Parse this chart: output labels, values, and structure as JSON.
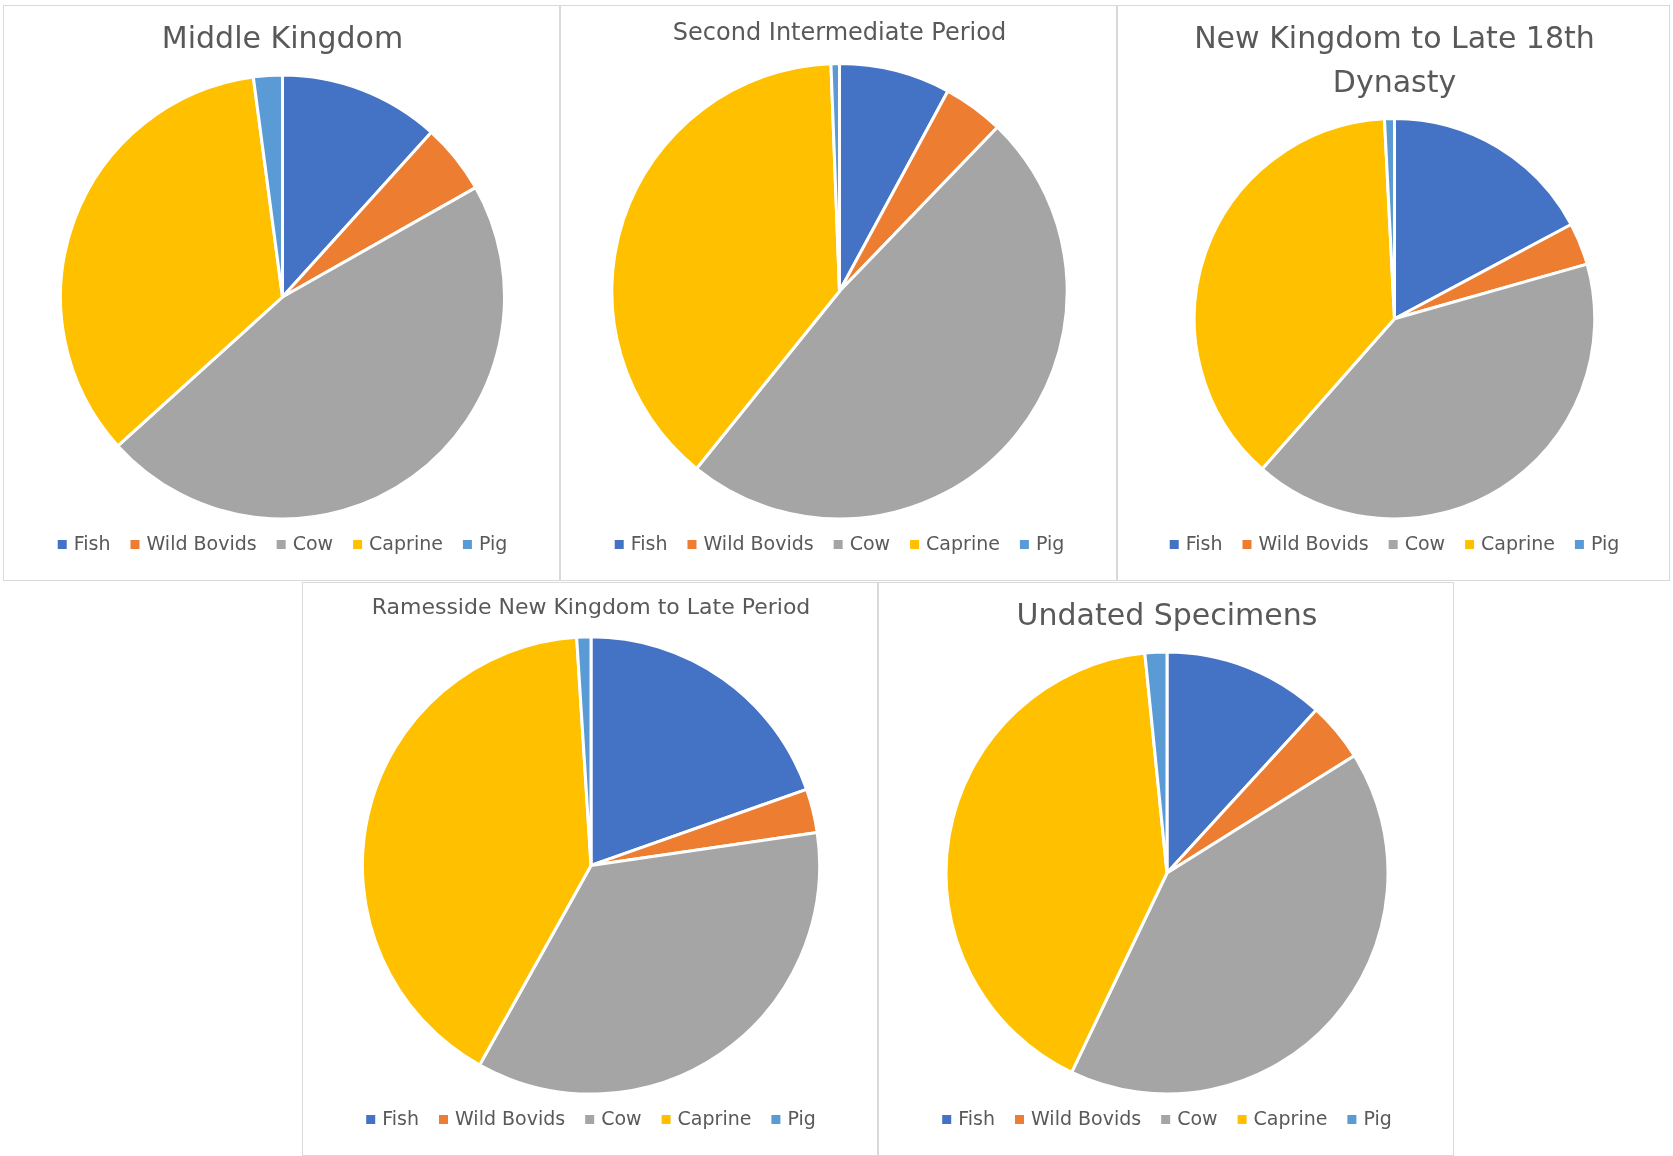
{
  "chart_data": [
    {
      "type": "pie",
      "title": "Middle Kingdom",
      "categories": [
        "Fish",
        "Wild Bovids",
        "Cow",
        "Caprine",
        "Pig"
      ],
      "values": [
        11.7,
        5.1,
        46.5,
        34.6,
        2.1
      ],
      "colors": [
        "#4472c4",
        "#ed7d31",
        "#a5a5a5",
        "#ffc000",
        "#5b9bd5"
      ],
      "legend": "bottom"
    },
    {
      "type": "pie",
      "title": "Second Intermediate Period",
      "categories": [
        "Fish",
        "Wild Bovids",
        "Cow",
        "Caprine",
        "Pig"
      ],
      "values": [
        7.9,
        4.3,
        48.6,
        38.6,
        0.6
      ],
      "colors": [
        "#4472c4",
        "#ed7d31",
        "#a5a5a5",
        "#ffc000",
        "#5b9bd5"
      ],
      "legend": "bottom"
    },
    {
      "type": "pie",
      "title": "New Kingdom to Late 18th Dynasty",
      "categories": [
        "Fish",
        "Wild Bovids",
        "Cow",
        "Caprine",
        "Pig"
      ],
      "values": [
        17.2,
        3.4,
        40.9,
        37.7,
        0.8
      ],
      "colors": [
        "#4472c4",
        "#ed7d31",
        "#a5a5a5",
        "#ffc000",
        "#5b9bd5"
      ],
      "legend": "bottom"
    },
    {
      "type": "pie",
      "title": "Ramesside New Kingdom to Late Period",
      "categories": [
        "Fish",
        "Wild Bovids",
        "Cow",
        "Caprine",
        "Pig"
      ],
      "values": [
        19.6,
        3.1,
        35.4,
        40.9,
        1.0
      ],
      "colors": [
        "#4472c4",
        "#ed7d31",
        "#a5a5a5",
        "#ffc000",
        "#5b9bd5"
      ],
      "legend": "bottom"
    },
    {
      "type": "pie",
      "title": "Undated Specimens",
      "categories": [
        "Fish",
        "Wild Bovids",
        "Cow",
        "Caprine",
        "Pig"
      ],
      "values": [
        11.8,
        4.3,
        41.0,
        41.3,
        1.6
      ],
      "colors": [
        "#4472c4",
        "#ed7d31",
        "#a5a5a5",
        "#ffc000",
        "#5b9bd5"
      ],
      "legend": "bottom"
    }
  ]
}
